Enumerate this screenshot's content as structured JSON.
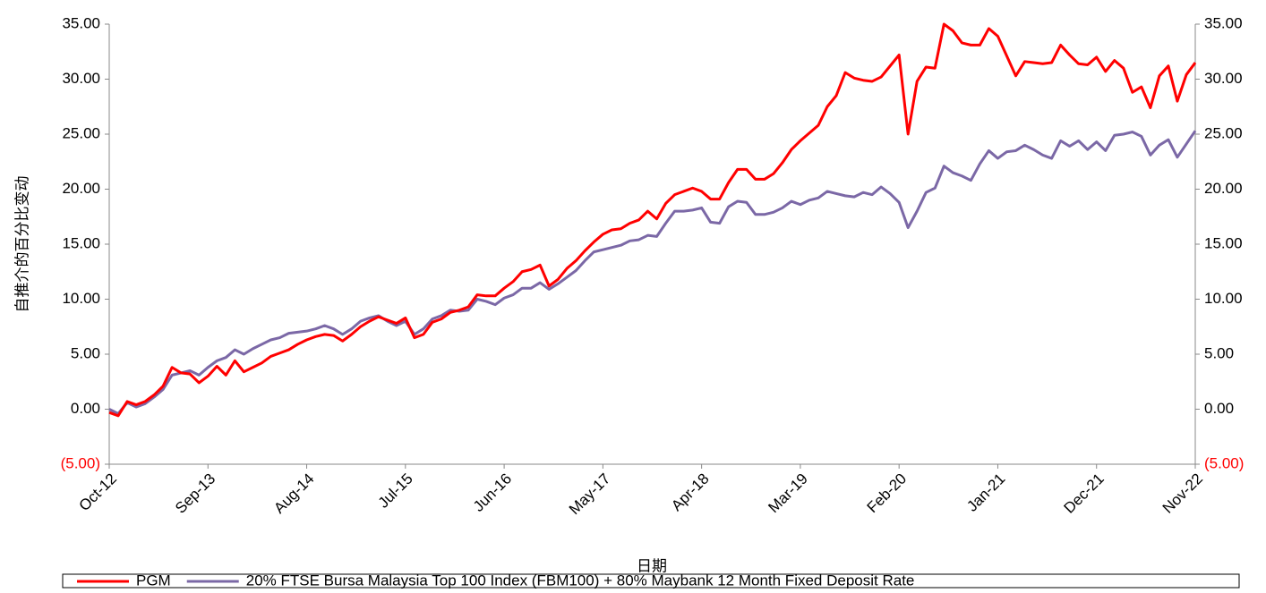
{
  "chart_data": {
    "type": "line",
    "y_label": "自推介的百分比变动",
    "x_label": "日期",
    "categories": [
      "Oct-12",
      null,
      null,
      null,
      null,
      null,
      null,
      null,
      null,
      null,
      null,
      "Sep-13",
      null,
      null,
      null,
      null,
      null,
      null,
      null,
      null,
      null,
      null,
      "Aug-14",
      null,
      null,
      null,
      null,
      null,
      null,
      null,
      null,
      null,
      null,
      "Jul-15",
      null,
      null,
      null,
      null,
      null,
      null,
      null,
      null,
      null,
      null,
      "Jun-16",
      null,
      null,
      null,
      null,
      null,
      null,
      null,
      null,
      null,
      null,
      "May-17",
      null,
      null,
      null,
      null,
      null,
      null,
      null,
      null,
      null,
      null,
      "Apr-18",
      null,
      null,
      null,
      null,
      null,
      null,
      null,
      null,
      null,
      null,
      "Mar-19",
      null,
      null,
      null,
      null,
      null,
      null,
      null,
      null,
      null,
      null,
      "Feb-20",
      null,
      null,
      null,
      null,
      null,
      null,
      null,
      null,
      null,
      null,
      "Jan-21",
      null,
      null,
      null,
      null,
      null,
      null,
      null,
      null,
      null,
      null,
      "Dec-21",
      null,
      null,
      null,
      null,
      null,
      null,
      null,
      null,
      null,
      null,
      "Nov-22"
    ],
    "series": [
      {
        "name": "PGM",
        "color": "#ff0000",
        "values": [
          -0.3,
          -0.6,
          0.7,
          0.4,
          0.7,
          1.3,
          2.1,
          3.8,
          3.3,
          3.2,
          2.4,
          3.0,
          3.9,
          3.1,
          4.4,
          3.4,
          3.8,
          4.2,
          4.8,
          5.1,
          5.4,
          5.9,
          6.3,
          6.6,
          6.8,
          6.7,
          6.2,
          6.8,
          7.5,
          8.0,
          8.4,
          8.1,
          7.8,
          8.3,
          6.5,
          6.8,
          7.9,
          8.2,
          8.8,
          9.0,
          9.3,
          10.4,
          10.3,
          10.3,
          11.0,
          11.6,
          12.5,
          12.7,
          13.1,
          11.2,
          11.8,
          12.8,
          13.5,
          14.4,
          15.2,
          15.9,
          16.3,
          16.4,
          16.9,
          17.2,
          18.0,
          17.3,
          18.7,
          19.5,
          19.8,
          20.1,
          19.8,
          19.1,
          19.1,
          20.6,
          21.8,
          21.8,
          20.9,
          20.9,
          21.4,
          22.4,
          23.6,
          24.4,
          25.1,
          25.8,
          27.5,
          28.5,
          30.6,
          30.1,
          29.9,
          29.8,
          30.2,
          31.2,
          32.2,
          25.0,
          29.8,
          31.1,
          31.0,
          35.0,
          34.4,
          33.3,
          33.1,
          33.1,
          34.6,
          33.9,
          32.1,
          30.3,
          31.6,
          31.5,
          31.4,
          31.5,
          33.1,
          32.2,
          31.4,
          31.3,
          32.0,
          30.7,
          31.7,
          31.0,
          28.8,
          29.3,
          27.4,
          30.3,
          31.2,
          28.0,
          30.4,
          31.5
        ]
      },
      {
        "name": "20% FTSE Bursa Malaysia Top 100 Index (FBM100) + 80% Maybank 12 Month Fixed Deposit Rate",
        "color": "#7b68a6",
        "values": [
          0.0,
          -0.4,
          0.6,
          0.2,
          0.5,
          1.1,
          1.8,
          3.1,
          3.3,
          3.5,
          3.1,
          3.8,
          4.4,
          4.7,
          5.4,
          5.0,
          5.5,
          5.9,
          6.3,
          6.5,
          6.9,
          7.0,
          7.1,
          7.3,
          7.6,
          7.3,
          6.8,
          7.3,
          8.0,
          8.3,
          8.5,
          8.0,
          7.6,
          8.0,
          6.8,
          7.3,
          8.2,
          8.5,
          9.0,
          8.9,
          9.0,
          10.0,
          9.8,
          9.5,
          10.1,
          10.4,
          11.0,
          11.0,
          11.5,
          10.9,
          11.4,
          12.0,
          12.6,
          13.5,
          14.3,
          14.5,
          14.7,
          14.9,
          15.3,
          15.4,
          15.8,
          15.7,
          16.9,
          18.0,
          18.0,
          18.1,
          18.3,
          17.0,
          16.9,
          18.4,
          18.9,
          18.8,
          17.7,
          17.7,
          17.9,
          18.3,
          18.9,
          18.6,
          19.0,
          19.2,
          19.8,
          19.6,
          19.4,
          19.3,
          19.7,
          19.5,
          20.2,
          19.6,
          18.8,
          16.5,
          18.0,
          19.7,
          20.1,
          22.1,
          21.5,
          21.2,
          20.8,
          22.3,
          23.5,
          22.8,
          23.4,
          23.5,
          24.0,
          23.6,
          23.1,
          22.8,
          24.4,
          23.9,
          24.4,
          23.6,
          24.3,
          23.5,
          24.9,
          25.0,
          25.2,
          24.8,
          23.1,
          24.0,
          24.5,
          22.9,
          24.1,
          25.3
        ]
      }
    ],
    "ylim": [
      -5,
      35
    ],
    "yticks": [
      {
        "value": -5,
        "label": "(5.00)"
      },
      {
        "value": 0,
        "label": "0.00"
      },
      {
        "value": 5,
        "label": "5.00"
      },
      {
        "value": 10,
        "label": "10.00"
      },
      {
        "value": 15,
        "label": "15.00"
      },
      {
        "value": 20,
        "label": "20.00"
      },
      {
        "value": 25,
        "label": "25.00"
      },
      {
        "value": 30,
        "label": "30.00"
      },
      {
        "value": 35,
        "label": "35.00"
      }
    ],
    "y2lim": [
      -5,
      35
    ],
    "y2ticks": [
      {
        "value": -5,
        "label": "(5.00)"
      },
      {
        "value": 0,
        "label": "0.00"
      },
      {
        "value": 5,
        "label": "5.00"
      },
      {
        "value": 10,
        "label": "10.00"
      },
      {
        "value": 15,
        "label": "15.00"
      },
      {
        "value": 20,
        "label": "20.00"
      },
      {
        "value": 25,
        "label": "25.00"
      },
      {
        "value": 30,
        "label": "30.00"
      },
      {
        "value": 35,
        "label": "35.00"
      }
    ],
    "negative_tick_color": "#ff0000",
    "grid": false,
    "legend": "bottom"
  }
}
